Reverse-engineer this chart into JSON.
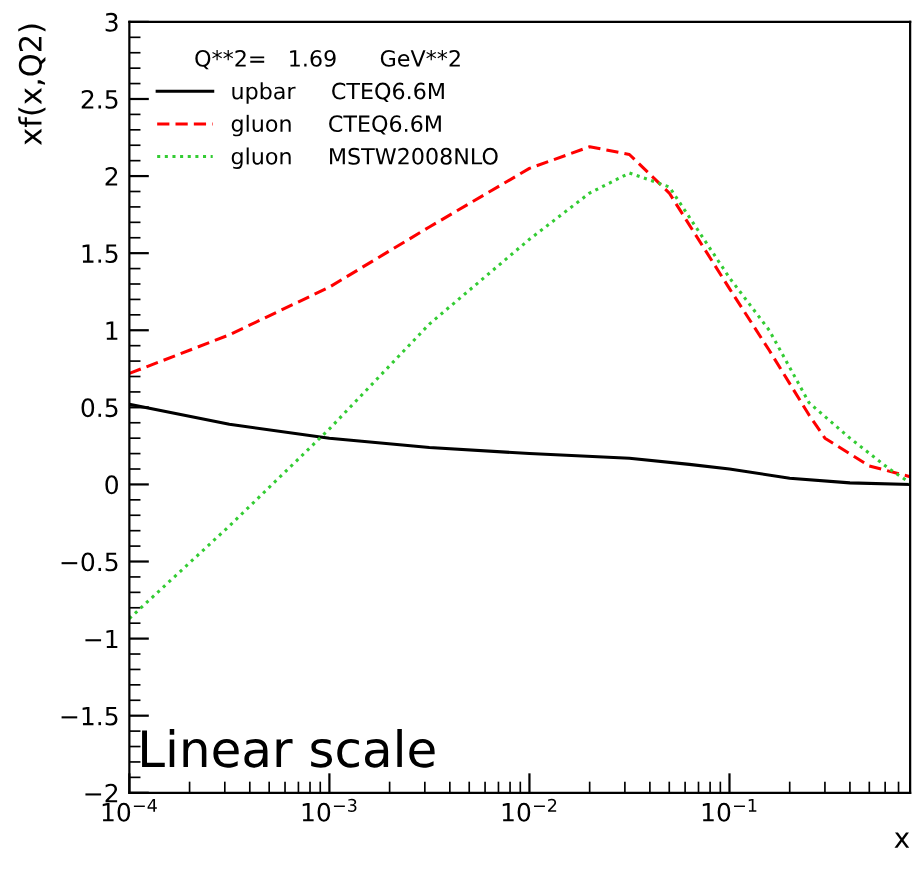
{
  "chart_data": {
    "type": "line",
    "xlabel": "x",
    "ylabel": "xf(x,Q2)",
    "legend_title": "Q**2=   1.69      GeV**2",
    "annotations": [
      "Linear scale"
    ],
    "log": "x",
    "xlim": [
      0.0001,
      0.8
    ],
    "ylim": [
      -2,
      3
    ],
    "xticks": [
      {
        "value": 0.0001,
        "label": "10$^{−4}$"
      },
      {
        "value": 0.001,
        "label": "10$^{−3}$"
      },
      {
        "value": 0.01,
        "label": "10$^{−2}$"
      },
      {
        "value": 0.1,
        "label": "10$^{−1}$"
      }
    ],
    "yticks": [
      -2,
      -1.5,
      -1,
      -0.5,
      0,
      0.5,
      1,
      1.5,
      2,
      2.5,
      3
    ],
    "grid": false,
    "legend": "top left",
    "series": [
      {
        "name": "upbar     CTEQ6.6M",
        "color": "#000000",
        "line_style": "solid",
        "x": [
          0.0001,
          0.000316,
          0.001,
          0.00316,
          0.01,
          0.0316,
          0.063,
          0.1,
          0.2,
          0.4,
          0.8
        ],
        "values": [
          0.52,
          0.39,
          0.3,
          0.24,
          0.2,
          0.17,
          0.13,
          0.1,
          0.04,
          0.01,
          0
        ]
      },
      {
        "name": "gluon     CTEQ6.6M",
        "color": "#ff0000",
        "line_style": "dashed",
        "x": [
          0.0001,
          0.000316,
          0.001,
          0.00316,
          0.01,
          0.02,
          0.0316,
          0.05,
          0.1,
          0.158,
          0.25,
          0.3,
          0.5,
          0.8
        ],
        "values": [
          0.72,
          0.97,
          1.28,
          1.67,
          2.05,
          2.19,
          2.14,
          1.89,
          1.27,
          0.87,
          0.45,
          0.3,
          0.12,
          0.05
        ]
      },
      {
        "name": "gluon     MSTW2008NLO",
        "color": "#33cc33",
        "line_style": "dotted",
        "x": [
          0.0001,
          0.000316,
          0.001,
          0.00316,
          0.01,
          0.02,
          0.0316,
          0.05,
          0.1,
          0.158,
          0.25,
          0.4,
          0.63,
          0.8
        ],
        "values": [
          -0.87,
          -0.27,
          0.36,
          1.04,
          1.59,
          1.89,
          2.02,
          1.93,
          1.34,
          1.0,
          0.53,
          0.3,
          0.1,
          0.01
        ]
      }
    ]
  }
}
